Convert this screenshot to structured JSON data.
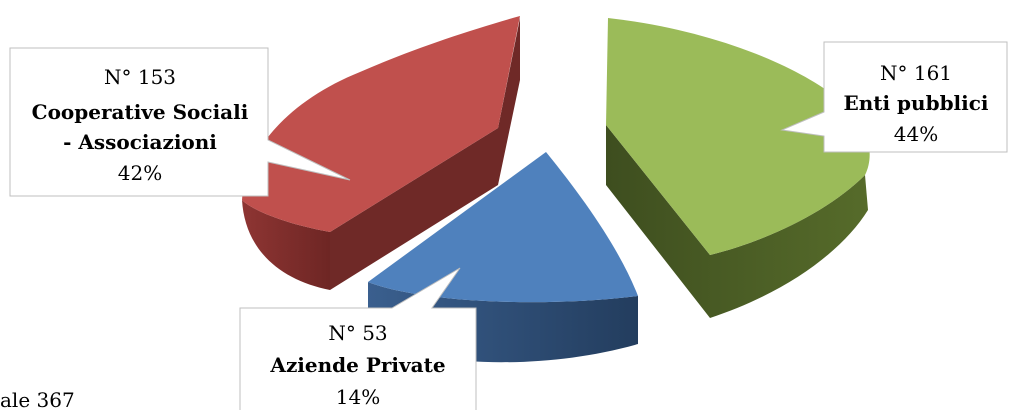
{
  "chart_data": {
    "type": "pie",
    "style": "3d-exploded",
    "title": "",
    "legend": "none",
    "slices": [
      {
        "id": "enti",
        "count_label": "N° 161",
        "category": "Enti pubblici",
        "category_lines": [
          "Enti pubblici"
        ],
        "percent_label": "44%",
        "value": 161,
        "percent": 44,
        "color": "#9BBB59",
        "side_color": "#4F6228"
      },
      {
        "id": "aziende",
        "count_label": "N° 53",
        "category": "Aziende Private",
        "category_lines": [
          "Aziende Private"
        ],
        "percent_label": "14%",
        "value": 53,
        "percent": 14,
        "color": "#4F81BD",
        "side_color": "#2A4A74"
      },
      {
        "id": "coop",
        "count_label": "N° 153",
        "category": "Cooperative Sociali - Associazioni",
        "category_lines": [
          "Cooperative Sociali",
          "- Associazioni"
        ],
        "percent_label": "42%",
        "value": 153,
        "percent": 42,
        "color": "#C0504D",
        "side_color": "#7F2D2B"
      }
    ]
  },
  "footer": {
    "partial_text": "ale 367"
  }
}
